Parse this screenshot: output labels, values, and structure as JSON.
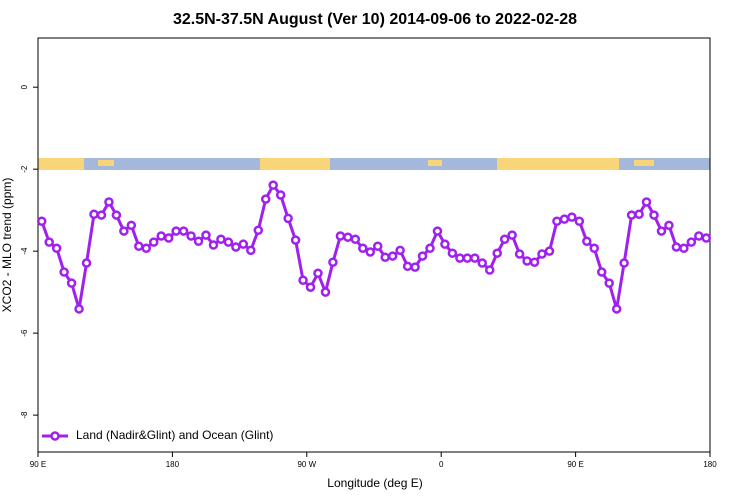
{
  "chart_data": {
    "type": "line",
    "title": "32.5N-37.5N August (Ver 10)   2014-09-06 to 2022-02-28",
    "x_label": "Longitude (deg E)",
    "y_label": "XCO2 - MLO trend (ppm)",
    "xlim": [
      90,
      540
    ],
    "xticks": [
      {
        "value": 90,
        "label": "90 E"
      },
      180,
      {
        "value": 270,
        "label": "90 W"
      },
      {
        "value": 360,
        "label": "0"
      },
      {
        "value": 450,
        "label": "90 E"
      },
      {
        "value": 540,
        "label": "180"
      }
    ],
    "ylim": [
      -8.9,
      1.2
    ],
    "yticks": [
      0,
      -2,
      -4,
      -6,
      -8
    ],
    "legend": "bottomleft",
    "x": [
      92.5,
      97.5,
      102.5,
      107.5,
      112.5,
      117.5,
      122.5,
      127.5,
      132.5,
      137.5,
      142.5,
      147.5,
      152.5,
      157.5,
      162.5,
      167.5,
      172.5,
      177.5,
      182.5,
      187.5,
      192.5,
      197.5,
      202.5,
      207.5,
      212.5,
      217.5,
      222.5,
      227.5,
      232.5,
      237.5,
      242.5,
      247.5,
      252.5,
      257.5,
      262.5,
      267.5,
      272.5,
      277.5,
      282.5,
      287.5,
      292.5,
      297.5,
      302.5,
      307.5,
      312.5,
      317.5,
      322.5,
      327.5,
      332.5,
      337.5,
      342.5,
      347.5,
      352.5,
      357.5,
      362.5,
      367.5,
      372.5,
      377.5,
      382.5,
      387.5,
      392.5,
      397.5,
      402.5,
      407.5,
      412.5,
      417.5,
      422.5,
      427.5,
      432.5,
      437.5,
      442.5,
      447.5,
      452.5,
      457.5,
      462.5,
      467.5,
      472.5,
      477.5,
      482.5,
      487.5,
      492.5,
      497.5,
      502.5,
      507.5,
      512.5,
      517.5,
      522.5,
      527.5,
      532.5,
      537.5
    ],
    "series": [
      {
        "name": "Land (Nadir&Glint) and Ocean (Glint)",
        "color": "#a020f0",
        "values": [
          -3.27,
          -3.78,
          -3.93,
          -4.51,
          -4.78,
          -5.41,
          -4.29,
          -3.1,
          -3.12,
          -2.8,
          -3.12,
          -3.51,
          -3.37,
          -3.88,
          -3.93,
          -3.78,
          -3.63,
          -3.68,
          -3.51,
          -3.51,
          -3.63,
          -3.76,
          -3.61,
          -3.85,
          -3.71,
          -3.78,
          -3.9,
          -3.83,
          -3.98,
          -3.49,
          -2.73,
          -2.39,
          -2.63,
          -3.2,
          -3.73,
          -4.71,
          -4.88,
          -4.54,
          -5.0,
          -4.27,
          -3.63,
          -3.66,
          -3.71,
          -3.93,
          -4.02,
          -3.88,
          -4.15,
          -4.12,
          -3.98,
          -4.37,
          -4.39,
          -4.12,
          -3.93,
          -3.51,
          -3.83,
          -4.05,
          -4.17,
          -4.17,
          -4.17,
          -4.29,
          -4.46,
          -4.05,
          -3.71,
          -3.61,
          -4.07,
          -4.24,
          -4.27,
          -4.07,
          -4.0,
          -3.27,
          -3.22,
          -3.17,
          -3.27,
          -3.76,
          -3.93,
          -4.51,
          -4.78,
          -5.41,
          -4.29,
          -3.12,
          -3.1,
          -2.8,
          -3.12,
          -3.51,
          -3.37,
          -3.9,
          -3.93,
          -3.78,
          -3.63,
          -3.68
        ]
      }
    ]
  }
}
